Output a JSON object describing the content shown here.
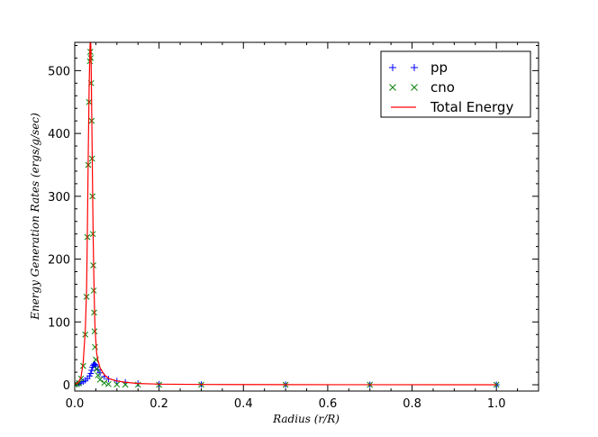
{
  "chart_data": {
    "type": "scatter",
    "title": "",
    "xlabel": "Radius (r/R)",
    "ylabel": "Energy Generation Rates (ergs/g/sec)",
    "xlim": [
      0.0,
      1.1
    ],
    "ylim": [
      -10,
      545
    ],
    "xticks": [
      0.0,
      0.2,
      0.4,
      0.6,
      0.8,
      1.0
    ],
    "xtick_labels": [
      "0.0",
      "0.2",
      "0.4",
      "0.6",
      "0.8",
      "1.0"
    ],
    "yticks": [
      0,
      100,
      200,
      300,
      400,
      500
    ],
    "ytick_labels": [
      "0",
      "100",
      "200",
      "300",
      "400",
      "500"
    ],
    "grid": false,
    "legend_position": "top-right",
    "series": [
      {
        "name": "pp",
        "marker": "+",
        "color": "#0000ff",
        "x": [
          0.0,
          0.005,
          0.01,
          0.015,
          0.02,
          0.025,
          0.03,
          0.035,
          0.038,
          0.04,
          0.042,
          0.044,
          0.046,
          0.048,
          0.05,
          0.055,
          0.06,
          0.07,
          0.08,
          0.1,
          0.12,
          0.15,
          0.2,
          0.3,
          0.5,
          0.7,
          1.0
        ],
        "y": [
          0.5,
          1,
          2,
          3,
          5,
          7,
          10,
          14,
          18,
          23,
          28,
          31,
          33,
          32,
          30,
          24,
          19,
          13,
          9,
          6,
          4,
          2,
          1,
          0.5,
          0.2,
          0.1,
          0
        ]
      },
      {
        "name": "cno",
        "marker": "x",
        "color": "#008000",
        "x": [
          0.0,
          0.005,
          0.01,
          0.015,
          0.02,
          0.025,
          0.028,
          0.03,
          0.032,
          0.034,
          0.036,
          0.037,
          0.038,
          0.039,
          0.04,
          0.041,
          0.042,
          0.043,
          0.044,
          0.045,
          0.046,
          0.047,
          0.048,
          0.05,
          0.052,
          0.055,
          0.06,
          0.07,
          0.08,
          0.1,
          0.12,
          0.15,
          0.2,
          0.3,
          0.5,
          0.7,
          1.0
        ],
        "y": [
          0.5,
          1,
          3,
          10,
          30,
          80,
          140,
          235,
          350,
          450,
          515,
          530,
          520,
          480,
          420,
          360,
          300,
          240,
          190,
          150,
          115,
          85,
          60,
          40,
          25,
          15,
          8,
          3,
          1,
          0.5,
          0.2,
          0.1,
          0,
          0,
          0,
          0,
          0
        ]
      },
      {
        "name": "Total Energy",
        "marker": "line",
        "color": "#ff0000",
        "x": [
          0.0,
          0.005,
          0.01,
          0.015,
          0.02,
          0.025,
          0.028,
          0.03,
          0.032,
          0.034,
          0.036,
          0.037,
          0.038,
          0.039,
          0.04,
          0.041,
          0.042,
          0.043,
          0.044,
          0.045,
          0.046,
          0.047,
          0.048,
          0.05,
          0.052,
          0.055,
          0.06,
          0.07,
          0.08,
          0.1,
          0.12,
          0.15,
          0.2,
          0.3,
          0.5,
          0.7,
          1.0
        ],
        "y": [
          1,
          2,
          5,
          13,
          35,
          87,
          150,
          248,
          365,
          468,
          535,
          550,
          542,
          505,
          448,
          390,
          330,
          272,
          222,
          182,
          147,
          116,
          92,
          70,
          50,
          39,
          27,
          16,
          10,
          6,
          4,
          2,
          1,
          0.5,
          0.2,
          0.1,
          0
        ]
      }
    ]
  }
}
